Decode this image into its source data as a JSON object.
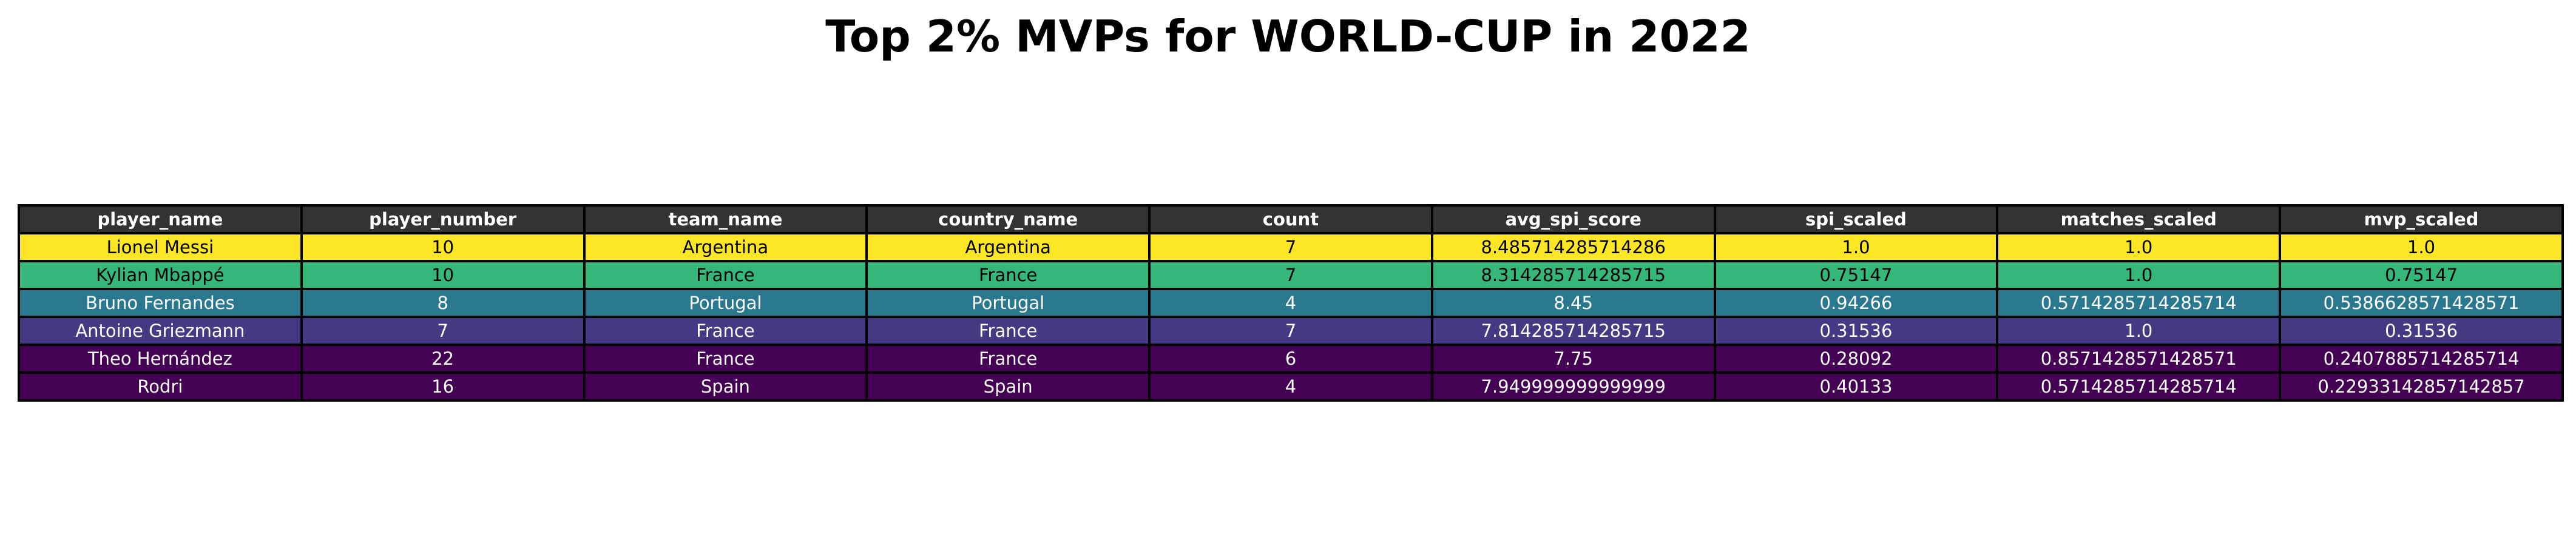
{
  "chart_data": {
    "type": "table",
    "title": "Top 2% MVPs for WORLD-CUP in 2022",
    "columns": [
      "player_name",
      "player_number",
      "team_name",
      "country_name",
      "count",
      "avg_spi_score",
      "spi_scaled",
      "matches_scaled",
      "mvp_scaled"
    ],
    "rows": [
      [
        "Lionel Messi",
        "10",
        "Argentina",
        "Argentina",
        "7",
        "8.485714285714286",
        "1.0",
        "1.0",
        "1.0"
      ],
      [
        "Kylian Mbappé",
        "10",
        "France",
        "France",
        "7",
        "8.314285714285715",
        "0.75147",
        "1.0",
        "0.75147"
      ],
      [
        "Bruno Fernandes",
        "8",
        "Portugal",
        "Portugal",
        "4",
        "8.45",
        "0.94266",
        "0.5714285714285714",
        "0.5386628571428571"
      ],
      [
        "Antoine Griezmann",
        "7",
        "France",
        "France",
        "7",
        "7.814285714285715",
        "0.31536",
        "1.0",
        "0.31536"
      ],
      [
        "Theo Hernández",
        "22",
        "France",
        "France",
        "6",
        "7.75",
        "0.28092",
        "0.8571428571428571",
        "0.2407885714285714"
      ],
      [
        "Rodri",
        "16",
        "Spain",
        "Spain",
        "4",
        "7.949999999999999",
        "0.40133",
        "0.5714285714285714",
        "0.22933142857142857"
      ]
    ],
    "row_colors": [
      "#fde725",
      "#35b779",
      "#2a788e",
      "#443983",
      "#440154",
      "#440154"
    ],
    "row_text_colors": [
      "#000000",
      "#000000",
      "#ffffff",
      "#ffffff",
      "#ffffff",
      "#ffffff"
    ],
    "header_color": "#333333",
    "header_text_color": "#ffffff"
  }
}
